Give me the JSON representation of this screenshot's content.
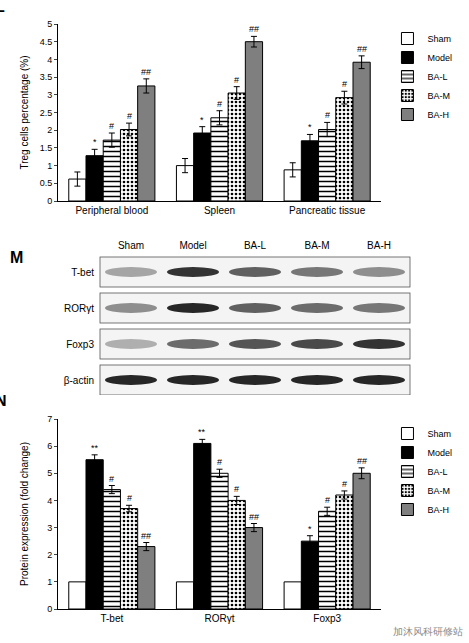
{
  "chart_data": [
    {
      "type": "bar",
      "panel_label": "L",
      "y_label": "Treg cells percentage (%)",
      "categories": [
        "Peripheral blood",
        "Spleen",
        "Pancreatic tissue"
      ],
      "ylim": [
        0,
        5
      ],
      "yticks": [
        0,
        0.5,
        1,
        1.5,
        2,
        2.5,
        3,
        3.5,
        4,
        4.5,
        5
      ],
      "grid": false,
      "legend": "right",
      "series": [
        {
          "name": "Sham",
          "color": "#ffffff",
          "marker": "solid",
          "values": [
            0.62,
            1.0,
            0.88
          ],
          "errors": [
            0.2,
            0.2,
            0.2
          ],
          "marks": [
            null,
            null,
            null
          ]
        },
        {
          "name": "Model",
          "color": "#000000",
          "marker": "solid",
          "values": [
            1.28,
            1.92,
            1.7
          ],
          "errors": [
            0.18,
            0.18,
            0.18
          ],
          "marks": [
            "*",
            "*",
            "*"
          ]
        },
        {
          "name": "BA-L",
          "color": "#ffffff",
          "marker": "horizontal_stripes",
          "values": [
            1.72,
            2.35,
            2.02
          ],
          "errors": [
            0.2,
            0.2,
            0.2
          ],
          "marks": [
            "#",
            "#",
            "#"
          ]
        },
        {
          "name": "BA-M",
          "color": "#ffffff",
          "marker": "dots",
          "values": [
            2.02,
            3.05,
            2.92
          ],
          "errors": [
            0.18,
            0.18,
            0.18
          ],
          "marks": [
            "#",
            "#",
            "#"
          ]
        },
        {
          "name": "BA-H",
          "color": "#7f7f7f",
          "marker": "solid",
          "values": [
            3.25,
            4.5,
            3.92
          ],
          "errors": [
            0.2,
            0.15,
            0.18
          ],
          "marks": [
            "##",
            "##",
            "##"
          ]
        }
      ]
    },
    {
      "type": "bar",
      "panel_label": "N",
      "y_label": "Protein expression (fold change)",
      "categories": [
        "T-bet",
        "RORγt",
        "Foxp3"
      ],
      "ylim": [
        0,
        7
      ],
      "yticks": [
        0,
        1,
        2,
        3,
        4,
        5,
        6,
        7
      ],
      "grid": false,
      "legend": "right",
      "series": [
        {
          "name": "Sham",
          "color": "#ffffff",
          "marker": "solid",
          "values": [
            1,
            1,
            1
          ],
          "marks": [
            null,
            null,
            null
          ]
        },
        {
          "name": "Model",
          "color": "#000000",
          "marker": "solid",
          "values": [
            5.5,
            6.1,
            2.5
          ],
          "errors": [
            0.18,
            0.15,
            0.2
          ],
          "marks": [
            "**",
            "**",
            "*"
          ]
        },
        {
          "name": "BA-L",
          "color": "#ffffff",
          "marker": "horizontal_stripes",
          "values": [
            4.4,
            5.0,
            3.6
          ],
          "errors": [
            0.15,
            0.15,
            0.15
          ],
          "marks": [
            "#",
            "#",
            "#"
          ]
        },
        {
          "name": "BA-M",
          "color": "#ffffff",
          "marker": "dots",
          "values": [
            3.7,
            4.0,
            4.2
          ],
          "errors": [
            0.12,
            0.15,
            0.15
          ],
          "marks": [
            "#",
            "#",
            "#"
          ]
        },
        {
          "name": "BA-H",
          "color": "#7f7f7f",
          "marker": "solid",
          "values": [
            2.3,
            3.0,
            5.0
          ],
          "errors": [
            0.15,
            0.15,
            0.2
          ],
          "marks": [
            "##",
            "##",
            "##"
          ]
        }
      ]
    }
  ],
  "blot": {
    "panel_label": "M",
    "lanes": [
      "Sham",
      "Model",
      "BA-L",
      "BA-M",
      "BA-H"
    ],
    "rows": [
      {
        "name": "T-bet",
        "band_intensity": [
          0.35,
          0.85,
          0.65,
          0.55,
          0.45
        ]
      },
      {
        "name": "RORγt",
        "band_intensity": [
          0.45,
          0.9,
          0.65,
          0.6,
          0.55
        ]
      },
      {
        "name": "Foxp3",
        "band_intensity": [
          0.3,
          0.6,
          0.7,
          0.75,
          0.85
        ]
      },
      {
        "name": "β-actin",
        "band_intensity": [
          0.9,
          0.9,
          0.9,
          0.9,
          0.9
        ]
      }
    ]
  },
  "watermark": "加沐风科研修站"
}
